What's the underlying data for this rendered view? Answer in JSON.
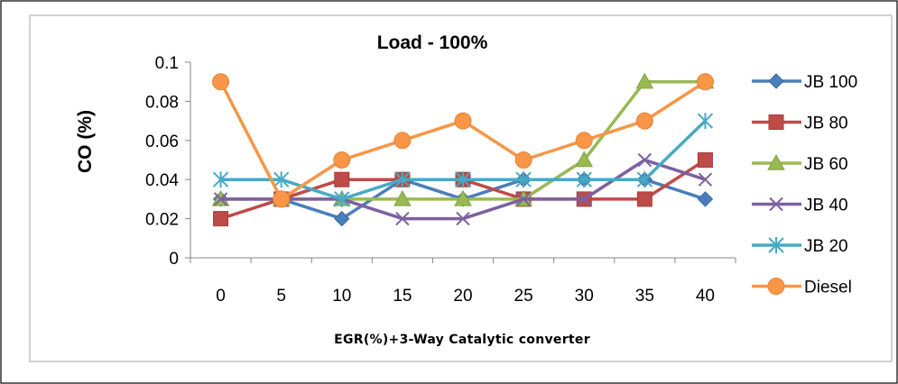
{
  "chart_data": {
    "type": "line",
    "title": "Load - 100%",
    "xlabel": "EGR(%)+3-Way Catalytic converter",
    "ylabel": "CO (%)",
    "categories": [
      "0",
      "5",
      "10",
      "15",
      "20",
      "25",
      "30",
      "35",
      "40"
    ],
    "yticks": [
      "0",
      "0.02",
      "0.04",
      "0.06",
      "0.08",
      "0.1"
    ],
    "ylim": [
      0,
      0.1
    ],
    "grid": false,
    "legend_position": "right",
    "series": [
      {
        "name": "JB 100",
        "marker": "diamond",
        "color": "#4a7ebb",
        "values": [
          0.03,
          0.03,
          0.02,
          0.04,
          0.03,
          0.04,
          0.04,
          0.04,
          0.03
        ]
      },
      {
        "name": "JB 80",
        "marker": "square",
        "color": "#be4b48",
        "values": [
          0.02,
          0.03,
          0.04,
          0.04,
          0.04,
          0.03,
          0.03,
          0.03,
          0.05
        ]
      },
      {
        "name": "JB 60",
        "marker": "triangle",
        "color": "#98b954",
        "values": [
          0.03,
          0.03,
          0.03,
          0.03,
          0.03,
          0.03,
          0.05,
          0.09,
          0.09
        ]
      },
      {
        "name": "JB 40",
        "marker": "x",
        "color": "#7d60a0",
        "values": [
          0.03,
          0.03,
          0.03,
          0.02,
          0.02,
          0.03,
          0.03,
          0.05,
          0.04
        ]
      },
      {
        "name": "JB 20",
        "marker": "star",
        "color": "#46aac5",
        "values": [
          0.04,
          0.04,
          0.03,
          0.04,
          0.04,
          0.04,
          0.04,
          0.04,
          0.07
        ]
      },
      {
        "name": "Diesel",
        "marker": "circle",
        "color": "#f79646",
        "values": [
          0.09,
          0.03,
          0.05,
          0.06,
          0.07,
          0.05,
          0.06,
          0.07,
          0.09
        ]
      }
    ]
  }
}
